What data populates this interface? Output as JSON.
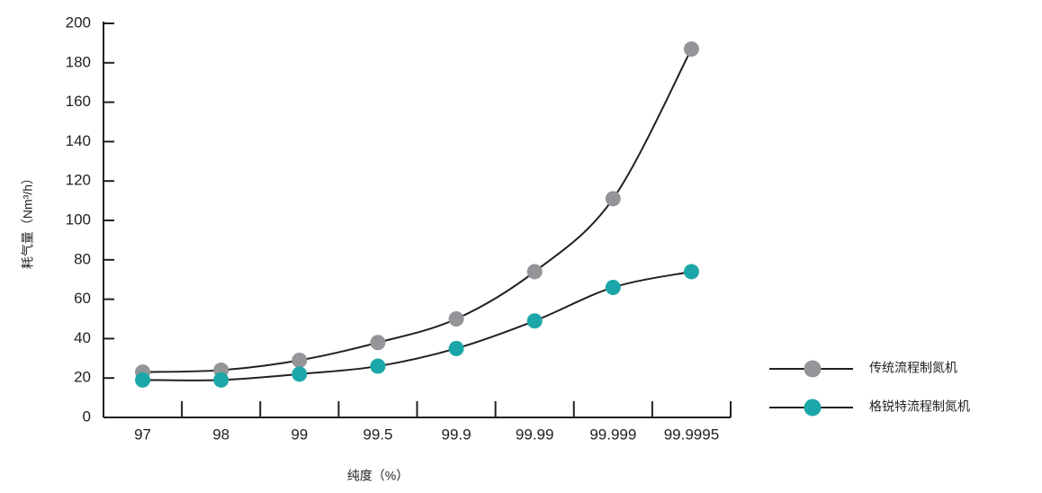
{
  "chart_data": {
    "type": "line",
    "x_label": "纯度（%）",
    "y_label": "耗气量（Nm³/h）",
    "categories": [
      "97",
      "98",
      "99",
      "99.5",
      "99.9",
      "99.99",
      "99.999",
      "99.9995"
    ],
    "series": [
      {
        "name": "传统流程制氮机",
        "color": "#939598",
        "values": [
          23,
          24,
          29,
          38,
          50,
          74,
          111,
          187
        ]
      },
      {
        "name": "格锐特流程制氮机",
        "color": "#1ba7a9",
        "values": [
          19,
          19,
          22,
          26,
          35,
          49,
          66,
          74
        ]
      }
    ],
    "line_color": "#231f20",
    "ylim": [
      0,
      200
    ],
    "yticks": [
      0,
      20,
      40,
      60,
      80,
      100,
      120,
      140,
      160,
      180,
      200
    ],
    "legend": "right"
  }
}
